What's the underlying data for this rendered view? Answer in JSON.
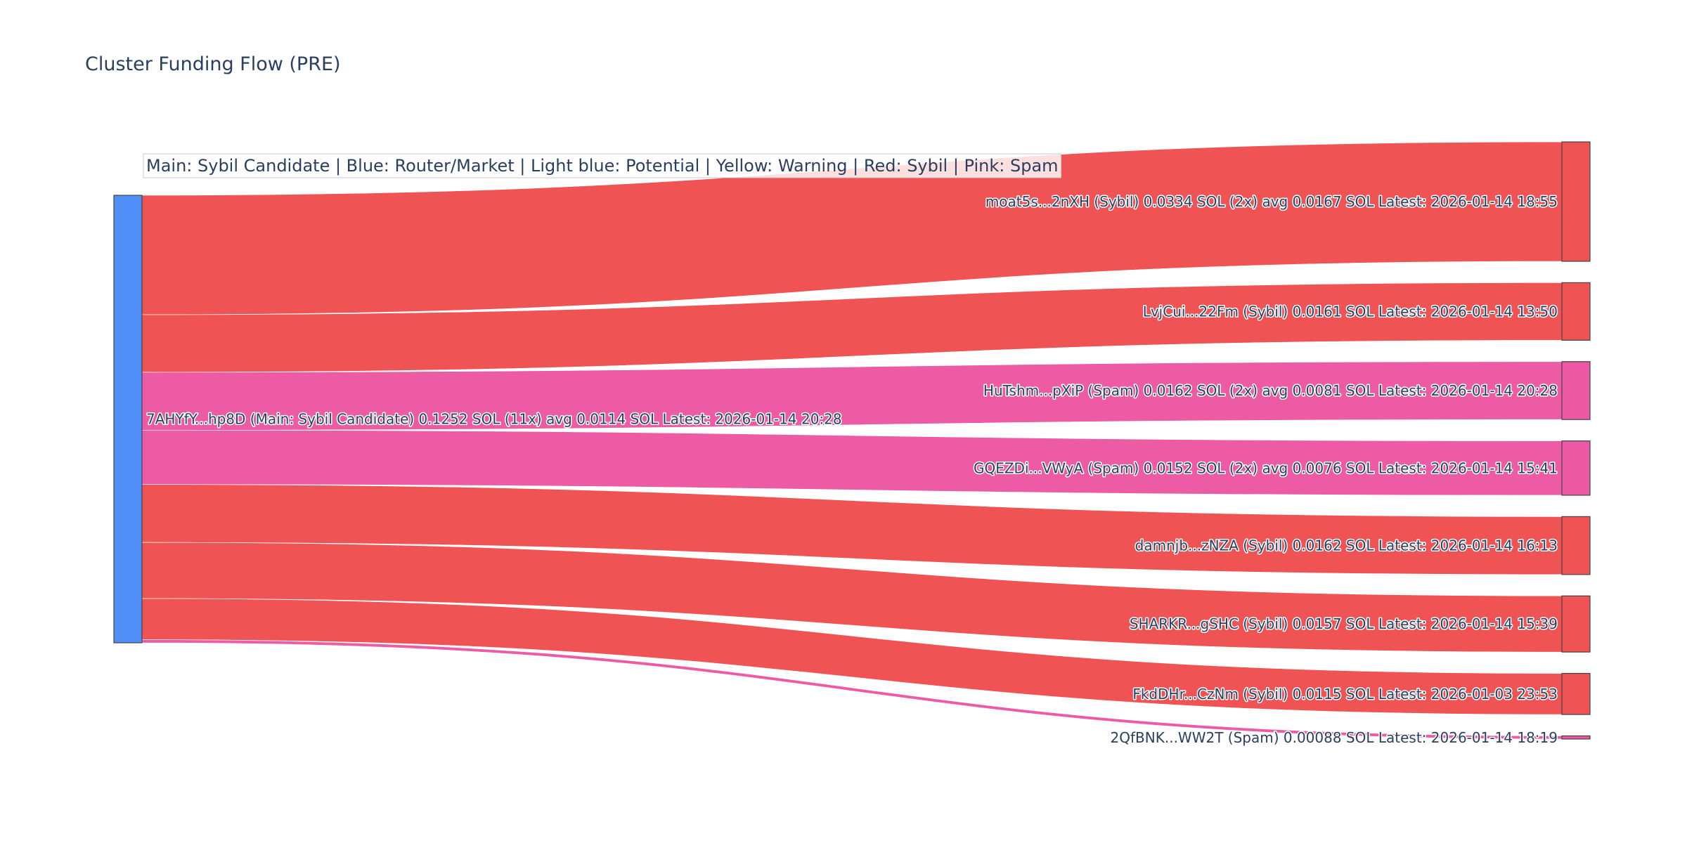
{
  "chart_data": {
    "type": "sankey",
    "title": "Cluster Funding Flow (PRE)",
    "legend_text": "Main: Sybil Candidate  |  Blue: Router/Market | Light blue: Potential | Yellow: Warning | Red: Sybil | Pink: Spam",
    "colors": {
      "main": "#4f8ef7",
      "sybil": "#ef5353",
      "spam": "#ec58a2"
    },
    "source": {
      "label": "7AHYfY...hp8D (Main: Sybil Candidate) 0.1252 SOL (11x) avg 0.0114 SOL Latest: 2026-01-14 20:28",
      "total_sol": 0.1252,
      "category": "main"
    },
    "targets": [
      {
        "label": "moat5s...2nXH (Sybil) 0.0334 SOL (2x) avg 0.0167 SOL Latest: 2026-01-14 18:55",
        "value": 0.0334,
        "category": "sybil"
      },
      {
        "label": "LvjCui...22Fm (Sybil) 0.0161 SOL Latest: 2026-01-14 13:50",
        "value": 0.0161,
        "category": "sybil"
      },
      {
        "label": "HuTshm...pXiP (Spam) 0.0162 SOL (2x) avg 0.0081 SOL Latest: 2026-01-14 20:28",
        "value": 0.0162,
        "category": "spam"
      },
      {
        "label": "GQEZDi...VWyA (Spam) 0.0152 SOL (2x) avg 0.0076 SOL Latest: 2026-01-14 15:41",
        "value": 0.0152,
        "category": "spam"
      },
      {
        "label": "damnjb...zNZA (Sybil) 0.0162 SOL Latest: 2026-01-14 16:13",
        "value": 0.0162,
        "category": "sybil"
      },
      {
        "label": "SHARKR...gSHC (Sybil) 0.0157 SOL Latest: 2026-01-14 15:39",
        "value": 0.0157,
        "category": "sybil"
      },
      {
        "label": "FkdDHr...CzNm (Sybil) 0.0115 SOL Latest: 2026-01-03 23:53",
        "value": 0.0115,
        "category": "sybil"
      },
      {
        "label": "2QfBNK...WW2T (Spam) 0.00088 SOL Latest: 2026-01-14 18:19",
        "value": 0.00088,
        "category": "spam"
      }
    ]
  }
}
